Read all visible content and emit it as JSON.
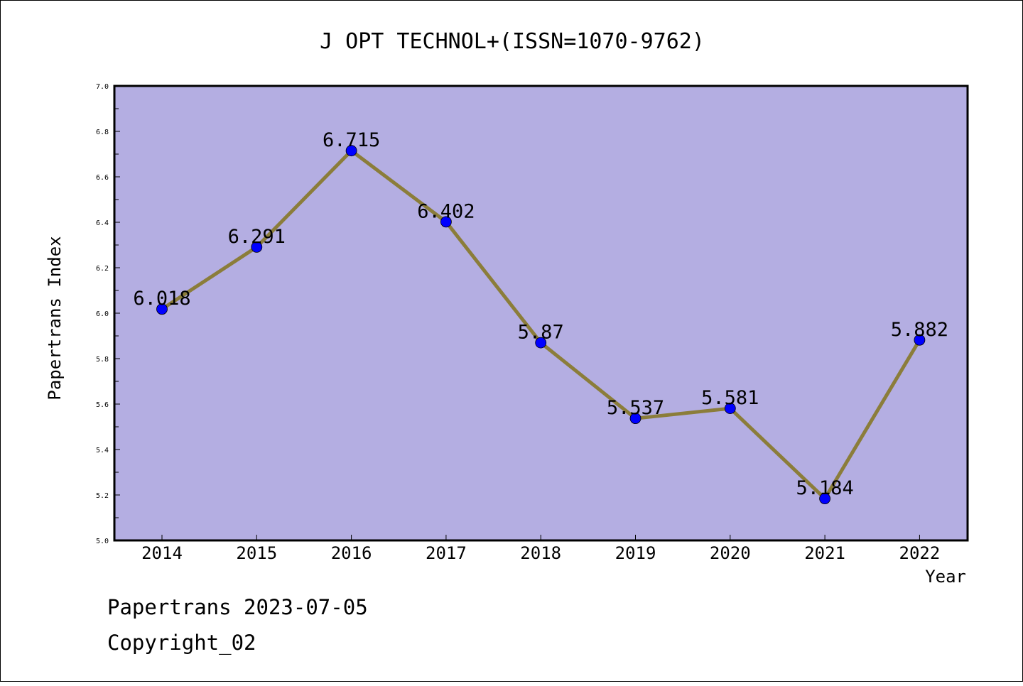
{
  "chart_data": {
    "type": "line",
    "title": "J OPT TECHNOL+(ISSN=1070-9762)",
    "xlabel": "Year",
    "ylabel": "Papertrans Index",
    "categories": [
      "2014",
      "2015",
      "2016",
      "2017",
      "2018",
      "2019",
      "2020",
      "2021",
      "2022"
    ],
    "values": [
      6.018,
      6.291,
      6.715,
      6.402,
      5.87,
      5.537,
      5.581,
      5.184,
      5.882
    ],
    "data_labels": [
      "6.018",
      "6.291",
      "6.715",
      "6.402",
      "5.87",
      "5.537",
      "5.581",
      "5.184",
      "5.882"
    ],
    "ylim": [
      5.0,
      7.0
    ],
    "y_ticks": [
      "5.0",
      "5.2",
      "5.4",
      "5.6",
      "5.8",
      "6.0",
      "6.2",
      "6.4",
      "6.6",
      "6.8",
      "7.0"
    ],
    "grid": false,
    "legend": "none"
  },
  "colors": {
    "plot_background": "#b4aee2",
    "line": "#8b7d3a",
    "marker": "#0000ff"
  },
  "footer": {
    "line1": "Papertrans 2023-07-05",
    "line2": "Copyright_02"
  }
}
